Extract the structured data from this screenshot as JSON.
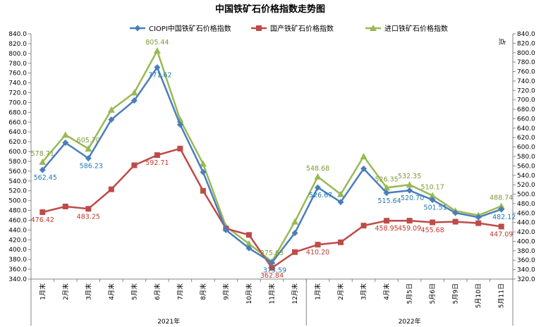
{
  "chart_data": {
    "type": "line",
    "title": "中国铁矿石价格指数走势图",
    "y2label": "点",
    "ylim": [
      340,
      840
    ],
    "y2lim": [
      320,
      840
    ],
    "grid": false,
    "legend_position": "top",
    "categories": [
      "1月末",
      "2月末",
      "3月末",
      "4月末",
      "5月末",
      "6月末",
      "7月末",
      "8月末",
      "9月末",
      "10月末",
      "11月末",
      "12月末",
      "1月末",
      "2月末",
      "3月末",
      "4月末",
      "5月5日",
      "5月6日",
      "5月9日",
      "5月10日",
      "5月11日"
    ],
    "groups": [
      {
        "label": "2021年",
        "count": 12
      },
      {
        "label": "2022年",
        "count": 9
      }
    ],
    "series": [
      {
        "name": "CIOPI中国铁矿石价格指数",
        "color": "#4a7ebb",
        "marker": "diamond",
        "values": [
          562.45,
          618,
          586.23,
          665,
          704,
          771.62,
          655,
          558,
          440,
          403,
          373.59,
          434,
          526.67,
          497,
          565,
          515.64,
          520.7,
          501.51,
          475,
          466,
          482.12
        ]
      },
      {
        "name": "国产铁矿石价格指数",
        "color": "#be4b48",
        "marker": "square",
        "values": [
          476.42,
          488,
          483.25,
          523,
          572,
          592.71,
          606,
          520,
          443,
          430,
          362.84,
          395,
          410.2,
          415,
          449,
          458.95,
          459.09,
          455.68,
          457,
          454,
          447.09
        ]
      },
      {
        "name": "进口铁矿石价格指数",
        "color": "#98b954",
        "marker": "triangle",
        "values": [
          578.71,
          634,
          605.7,
          685,
          720,
          805.44,
          665,
          575,
          447,
          412,
          375.63,
          457,
          548.68,
          513,
          590,
          526.35,
          532.35,
          510.17,
          479,
          470,
          488.74
        ]
      }
    ],
    "labels": [
      {
        "series": 0,
        "index": 0,
        "text": "562.45"
      },
      {
        "series": 0,
        "index": 2,
        "text": "586.23"
      },
      {
        "series": 0,
        "index": 5,
        "text": "771.62"
      },
      {
        "series": 0,
        "index": 10,
        "text": "373.59"
      },
      {
        "series": 0,
        "index": 12,
        "text": "526.67"
      },
      {
        "series": 0,
        "index": 15,
        "text": "515.64"
      },
      {
        "series": 0,
        "index": 16,
        "text": "520.70"
      },
      {
        "series": 0,
        "index": 17,
        "text": "501.51"
      },
      {
        "series": 0,
        "index": 20,
        "text": "482.12"
      },
      {
        "series": 1,
        "index": 0,
        "text": "476.42"
      },
      {
        "series": 1,
        "index": 2,
        "text": "483.25"
      },
      {
        "series": 1,
        "index": 5,
        "text": "592.71"
      },
      {
        "series": 1,
        "index": 10,
        "text": "362.84"
      },
      {
        "series": 1,
        "index": 12,
        "text": "410.20"
      },
      {
        "series": 1,
        "index": 15,
        "text": "458.95"
      },
      {
        "series": 1,
        "index": 16,
        "text": "459.09"
      },
      {
        "series": 1,
        "index": 17,
        "text": "455.68"
      },
      {
        "series": 1,
        "index": 20,
        "text": "447.09"
      },
      {
        "series": 2,
        "index": 0,
        "text": "578.71"
      },
      {
        "series": 2,
        "index": 2,
        "text": "605.70"
      },
      {
        "series": 2,
        "index": 5,
        "text": "805.44"
      },
      {
        "series": 2,
        "index": 10,
        "text": "375.63"
      },
      {
        "series": 2,
        "index": 12,
        "text": "548.68"
      },
      {
        "series": 2,
        "index": 15,
        "text": "526.35"
      },
      {
        "series": 2,
        "index": 16,
        "text": "532.35"
      },
      {
        "series": 2,
        "index": 17,
        "text": "510.17"
      },
      {
        "series": 2,
        "index": 20,
        "text": "488.74"
      }
    ]
  }
}
